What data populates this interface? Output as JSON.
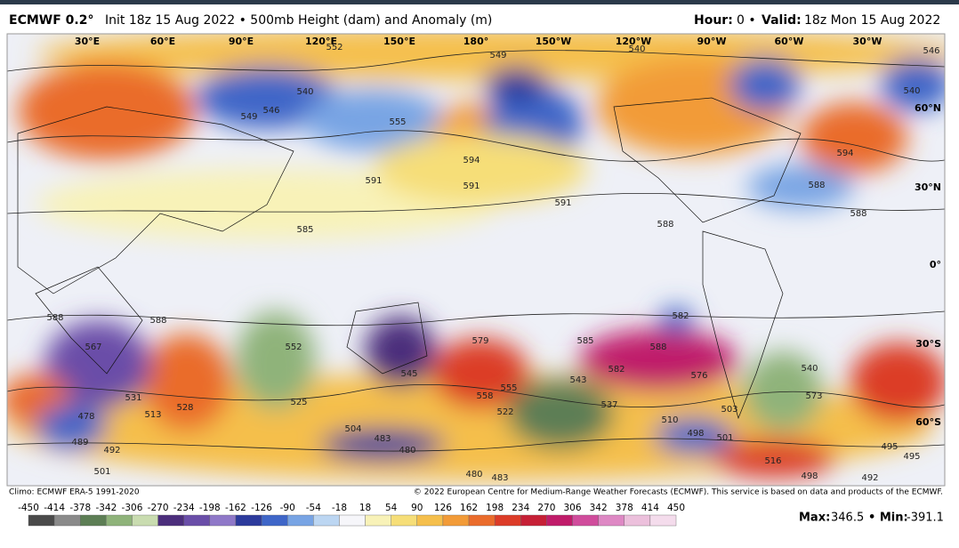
{
  "header": {
    "model": "ECMWF 0.2°",
    "title": "Init 18z 15 Aug 2022 • 500mb Height (dam) and Anomaly (m)",
    "hour_label": "Hour:",
    "hour": "0 •",
    "valid_label": "Valid:",
    "valid": "18z Mon 15 Aug 2022"
  },
  "map": {
    "longitudes": [
      "30°E",
      "60°E",
      "90°E",
      "120°E",
      "150°E",
      "180°",
      "150°W",
      "120°W",
      "90°W",
      "60°W",
      "30°W"
    ],
    "latitudes": [
      "60°N",
      "30°N",
      "0°",
      "30°S",
      "60°S"
    ],
    "contour_labels": [
      549,
      552,
      540,
      546,
      546,
      549,
      540,
      555,
      594,
      591,
      591,
      591,
      588,
      588,
      588,
      594,
      540,
      585,
      588,
      588,
      567,
      552,
      545,
      579,
      585,
      588,
      582,
      576,
      582,
      558,
      555,
      522,
      543,
      537,
      528,
      531,
      513,
      525,
      504,
      483,
      480,
      489,
      492,
      501,
      478,
      498,
      501,
      516,
      495,
      495,
      480,
      483,
      492,
      498,
      510,
      540,
      573,
      503
    ]
  },
  "footer": {
    "climo": "Climo: ECMWF ERA-5 1991-2020",
    "copyright": "© 2022 European Centre for Medium-Range Weather Forecasts (ECMWF). This service is based on data and products of the ECMWF.",
    "max_label": "Max:",
    "max": 346.5,
    "min_label": "• Min:",
    "min": -391.1
  },
  "colorbar": {
    "ticks": [
      -450,
      -414,
      -378,
      -342,
      -306,
      -270,
      -234,
      -198,
      -162,
      -126,
      -90,
      -54,
      -18,
      18,
      54,
      90,
      126,
      162,
      198,
      234,
      270,
      306,
      342,
      378,
      414,
      450
    ],
    "colors": [
      "#4a4a4a",
      "#8a8a8a",
      "#5d7e55",
      "#8fb37a",
      "#c9dcb0",
      "#4c2e7c",
      "#6a4ea8",
      "#8f78c8",
      "#2c3a9c",
      "#3f66c8",
      "#78a4e4",
      "#bcd6f2",
      "#f6f6fa",
      "#f8f2b8",
      "#f6de78",
      "#f5bf4c",
      "#f29b38",
      "#ea6c2c",
      "#dc3c28",
      "#c62036",
      "#c01c6a",
      "#d04c9c",
      "#de88c4",
      "#ecc0dc",
      "#f4dcec"
    ]
  }
}
